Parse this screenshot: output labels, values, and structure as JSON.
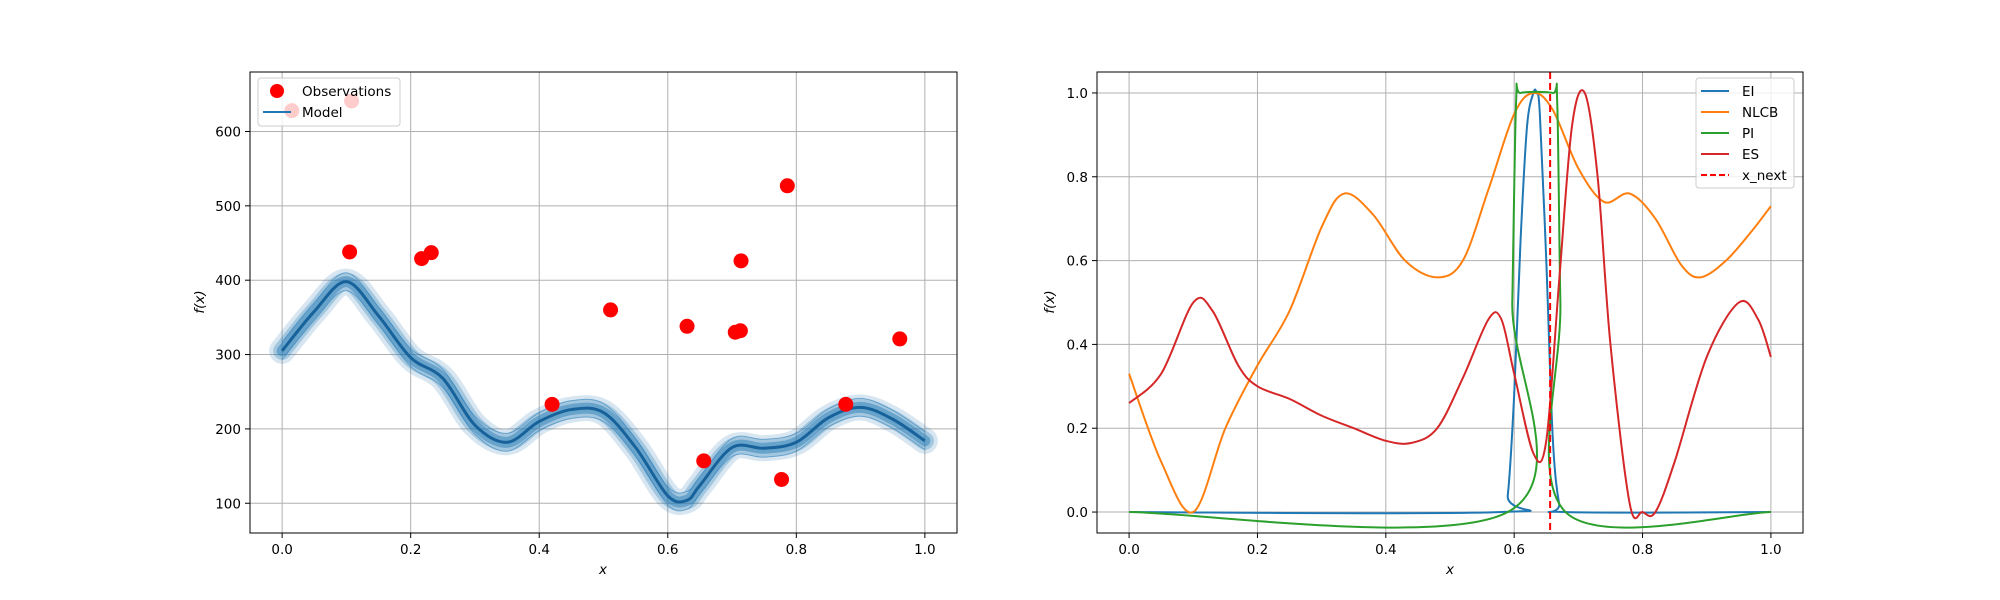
{
  "chart_data": [
    {
      "type": "line",
      "xlabel": "x",
      "ylabel": "f(x)",
      "xlim": [
        -0.05,
        1.05
      ],
      "ylim": [
        60,
        680
      ],
      "xticks": [
        "0.0",
        "0.2",
        "0.4",
        "0.6",
        "0.8",
        "1.0"
      ],
      "yticks": [
        "100",
        "200",
        "300",
        "400",
        "500",
        "600"
      ],
      "grid": true,
      "legend_placement": "top-left",
      "legend": [
        "Observations",
        "Model"
      ],
      "colors": {
        "observations": "#ff0000",
        "model": "#1f77b4"
      },
      "observations": {
        "name": "Observations",
        "x": [
          0.015,
          0.105,
          0.108,
          0.217,
          0.232,
          0.42,
          0.511,
          0.63,
          0.656,
          0.705,
          0.713,
          0.714,
          0.777,
          0.786,
          0.877,
          0.961
        ],
        "y": [
          628,
          438,
          641,
          429,
          437,
          233,
          360,
          338,
          157,
          330,
          332,
          426,
          132,
          527,
          233,
          321
        ]
      },
      "model": {
        "name": "Model",
        "x": [
          0.0,
          0.05,
          0.1,
          0.15,
          0.2,
          0.25,
          0.3,
          0.35,
          0.4,
          0.45,
          0.5,
          0.55,
          0.6,
          0.63,
          0.65,
          0.7,
          0.75,
          0.8,
          0.85,
          0.9,
          0.95,
          1.0
        ],
        "y": [
          305,
          358,
          398,
          352,
          296,
          268,
          205,
          182,
          210,
          226,
          222,
          175,
          110,
          104,
          124,
          175,
          174,
          182,
          215,
          229,
          213,
          184
        ],
        "uncertainty_band": 12
      }
    },
    {
      "type": "line",
      "xlabel": "x",
      "ylabel": "f(x)",
      "xlim": [
        -0.05,
        1.05
      ],
      "ylim": [
        -0.05,
        1.05
      ],
      "xticks": [
        "0.0",
        "0.2",
        "0.4",
        "0.6",
        "0.8",
        "1.0"
      ],
      "yticks": [
        "0.0",
        "0.2",
        "0.4",
        "0.6",
        "0.8",
        "1.0"
      ],
      "grid": true,
      "legend_placement": "top-right",
      "x_next": 0.656,
      "series": [
        {
          "name": "EI",
          "color": "#1f77b4",
          "x": [
            0.0,
            0.58,
            0.59,
            0.6,
            0.61,
            0.62,
            0.63,
            0.635,
            0.64,
            0.65,
            0.66,
            0.67,
            0.68,
            1.0
          ],
          "y": [
            0.0,
            0.0,
            0.04,
            0.28,
            0.65,
            0.92,
            1.0,
            1.0,
            0.95,
            0.6,
            0.18,
            0.02,
            0.0,
            0.0
          ]
        },
        {
          "name": "NLCB",
          "color": "#ff7f0e",
          "x": [
            0.0,
            0.05,
            0.1,
            0.15,
            0.2,
            0.25,
            0.3,
            0.335,
            0.38,
            0.43,
            0.48,
            0.52,
            0.56,
            0.6,
            0.63,
            0.66,
            0.7,
            0.74,
            0.78,
            0.82,
            0.86,
            0.89,
            0.93,
            0.97,
            1.0
          ],
          "y": [
            0.33,
            0.12,
            0.0,
            0.2,
            0.35,
            0.48,
            0.68,
            0.76,
            0.71,
            0.6,
            0.56,
            0.6,
            0.77,
            0.95,
            1.0,
            0.96,
            0.82,
            0.74,
            0.76,
            0.7,
            0.59,
            0.56,
            0.6,
            0.67,
            0.73
          ]
        },
        {
          "name": "PI",
          "color": "#2ca02c",
          "x": [
            0.0,
            0.59,
            0.597,
            0.603,
            0.61,
            0.66,
            0.667,
            0.672,
            0.68,
            1.0
          ],
          "y": [
            0.0,
            0.0,
            0.5,
            0.98,
            1.0,
            1.0,
            0.98,
            0.5,
            0.0,
            0.0
          ]
        },
        {
          "name": "ES",
          "color": "#d62728",
          "x": [
            0.0,
            0.05,
            0.1,
            0.13,
            0.17,
            0.2,
            0.25,
            0.3,
            0.35,
            0.4,
            0.44,
            0.48,
            0.52,
            0.56,
            0.58,
            0.6,
            0.63,
            0.65,
            0.67,
            0.69,
            0.71,
            0.73,
            0.75,
            0.78,
            0.8,
            0.82,
            0.85,
            0.9,
            0.95,
            0.98,
            1.0
          ],
          "y": [
            0.26,
            0.33,
            0.5,
            0.48,
            0.35,
            0.3,
            0.27,
            0.23,
            0.2,
            0.17,
            0.165,
            0.2,
            0.32,
            0.46,
            0.46,
            0.33,
            0.14,
            0.17,
            0.55,
            0.92,
            1.0,
            0.8,
            0.4,
            0.02,
            0.0,
            0.0,
            0.12,
            0.37,
            0.5,
            0.46,
            0.37
          ]
        }
      ],
      "legend": [
        "EI",
        "NLCB",
        "PI",
        "ES",
        "x_next"
      ],
      "x_next_style": {
        "color": "#ff0000",
        "dash": "dashed",
        "label": "x_next"
      }
    }
  ]
}
